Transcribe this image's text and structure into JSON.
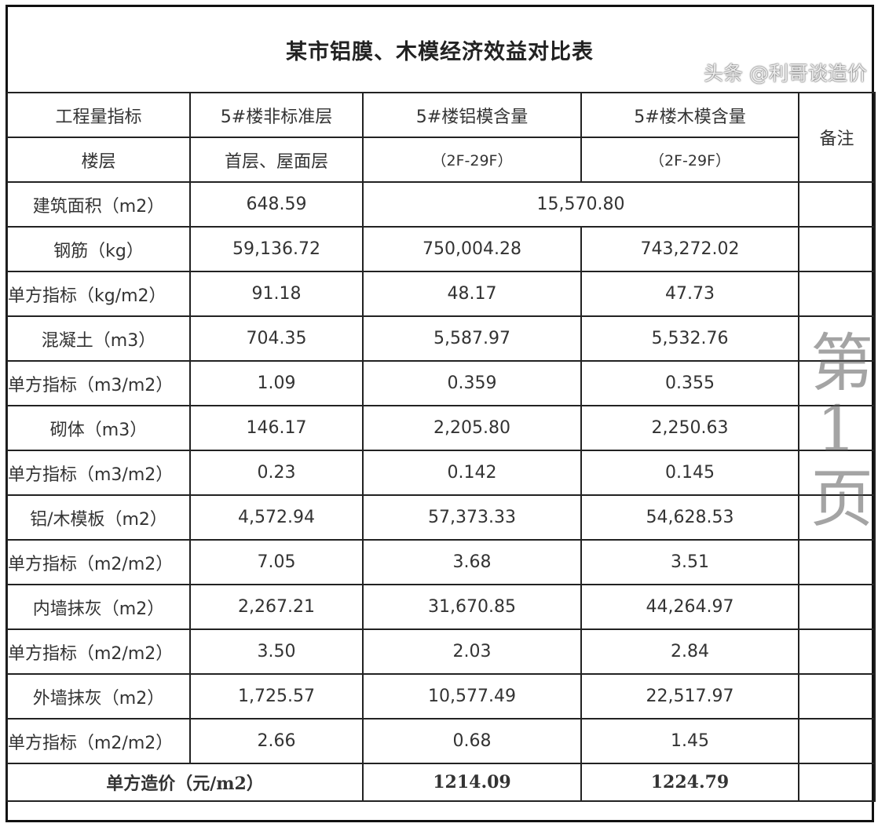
{
  "title": "某市铝膜、木模经济效益对比表",
  "header": {
    "row1": [
      "工程量指标",
      "5#楼非标准层",
      "5#楼铝模含量",
      "5#楼木模含量"
    ],
    "remark": "备注",
    "row2": [
      "楼层",
      "首层、屋面层",
      "（2F-29F）",
      "（2F-29F）"
    ]
  },
  "area_row": {
    "label": "建筑面积（m2）",
    "nonstd": "648.59",
    "merged": "15,570.80"
  },
  "rows": [
    {
      "label": "钢筋（kg）",
      "v": [
        "59,136.72",
        "750,004.28",
        "743,272.02"
      ]
    },
    {
      "label": "单方指标（kg/m2）",
      "v": [
        "91.18",
        "48.17",
        "47.73"
      ]
    },
    {
      "label": "混凝土（m3）",
      "v": [
        "704.35",
        "5,587.97",
        "5,532.76"
      ]
    },
    {
      "label": "单方指标（m3/m2）",
      "v": [
        "1.09",
        "0.359",
        "0.355"
      ]
    },
    {
      "label": "砌体（m3）",
      "v": [
        "146.17",
        "2,205.80",
        "2,250.63"
      ]
    },
    {
      "label": "单方指标（m3/m2）",
      "v": [
        "0.23",
        "0.142",
        "0.145"
      ]
    },
    {
      "label": "铝/木模板（m2）",
      "v": [
        "4,572.94",
        "57,373.33",
        "54,628.53"
      ]
    },
    {
      "label": "单方指标（m2/m2）",
      "v": [
        "7.05",
        "3.68",
        "3.51"
      ]
    },
    {
      "label": "内墙抹灰（m2）",
      "v": [
        "2,267.21",
        "31,670.85",
        "44,264.97"
      ]
    },
    {
      "label": "单方指标（m2/m2）",
      "v": [
        "3.50",
        "2.03",
        "2.84"
      ]
    },
    {
      "label": "外墙抹灰（m2）",
      "v": [
        "1,725.57",
        "10,577.49",
        "22,517.97"
      ]
    },
    {
      "label": "单方指标（m2/m2）",
      "v": [
        "2.66",
        "0.68",
        "1.45"
      ]
    }
  ],
  "total": {
    "label": "单方造价（元/m2）",
    "alu": "1214.09",
    "wood": "1224.79"
  },
  "watermark": "第1页",
  "credit": "头条 @利哥谈造价"
}
